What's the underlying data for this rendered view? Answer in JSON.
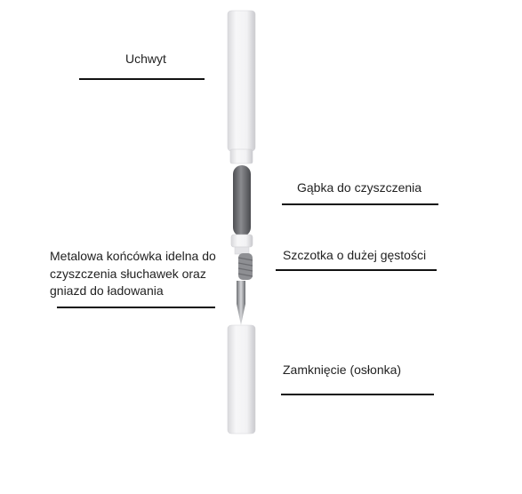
{
  "labels": {
    "handle": "Uchwyt",
    "sponge": "Gąbka do czyszczenia",
    "brush": "Szczotka o dużej gęstości",
    "metal_tip_line1": "Metalowa końcówka idelna do",
    "metal_tip_line2": "czyszczenia słuchawek oraz",
    "metal_tip_line3": "gniazd do ładowania",
    "cap": "Zamknięcie (osłonka)"
  },
  "colors": {
    "rule": "#111111",
    "text": "#222222",
    "pen_body": "#eeeef0",
    "sponge": "#6d6e72",
    "brush": "#8a8a8e",
    "metal": "#9a9ca0"
  }
}
